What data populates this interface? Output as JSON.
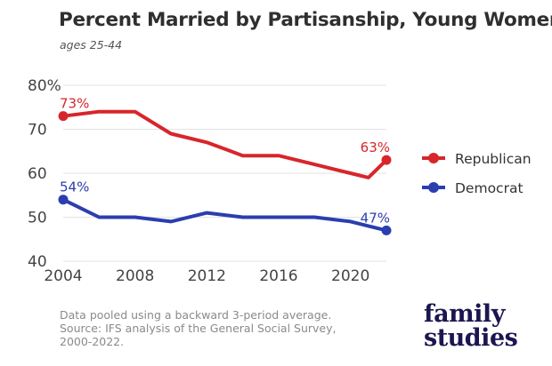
{
  "chart_data": {
    "type": "line",
    "title": "Percent Married by Partisanship, Young Women",
    "subtitle": "ages 25-44",
    "x": [
      2004,
      2006,
      2008,
      2010,
      2012,
      2014,
      2016,
      2018,
      2020,
      2021,
      2022
    ],
    "xticks": [
      2004,
      2008,
      2012,
      2016,
      2020
    ],
    "yticks": [
      "80%",
      "70",
      "60",
      "50",
      "40"
    ],
    "ylim": [
      40,
      80
    ],
    "xlim": [
      2004,
      2022
    ],
    "grid": "horizontal",
    "legend_position": "right",
    "series": [
      {
        "name": "Republican",
        "color": "#d7262b",
        "values": [
          73,
          74,
          74,
          69,
          67,
          64,
          64,
          62,
          60,
          59,
          63
        ],
        "start_label": "73%",
        "end_label": "63%"
      },
      {
        "name": "Democrat",
        "color": "#2b3eaf",
        "values": [
          54,
          50,
          50,
          49,
          51,
          50,
          50,
          50,
          49,
          48,
          47
        ],
        "start_label": "54%",
        "end_label": "47%"
      }
    ]
  },
  "note": {
    "line1": "Data pooled using a backward 3-period average.",
    "line2": "Source: IFS analysis of the General Social Survey,",
    "line3": "2000-2022."
  },
  "logo": {
    "line1": "family",
    "line2": "studies",
    "color": "#1c1650"
  }
}
